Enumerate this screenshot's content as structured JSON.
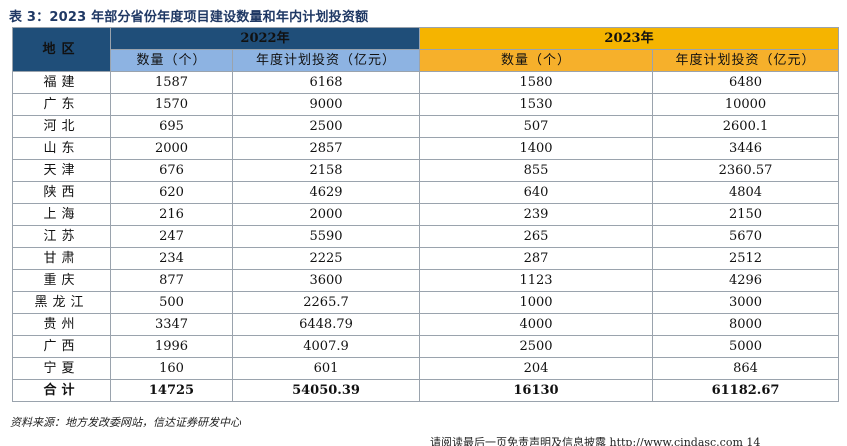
{
  "title": "表 3：2023 年部分省份年度项目建设数量和年内计划投资额",
  "table": {
    "region_header": "地区",
    "year_2022": "2022年",
    "year_2023": "2023年",
    "col_count": "数量（个）",
    "col_invest": "年度计划投资（亿元）",
    "rows": [
      {
        "region": "福建",
        "c22": "1587",
        "i22": "6168",
        "c23": "1580",
        "i23": "6480"
      },
      {
        "region": "广东",
        "c22": "1570",
        "i22": "9000",
        "c23": "1530",
        "i23": "10000"
      },
      {
        "region": "河北",
        "c22": "695",
        "i22": "2500",
        "c23": "507",
        "i23": "2600.1"
      },
      {
        "region": "山东",
        "c22": "2000",
        "i22": "2857",
        "c23": "1400",
        "i23": "3446"
      },
      {
        "region": "天津",
        "c22": "676",
        "i22": "2158",
        "c23": "855",
        "i23": "2360.57"
      },
      {
        "region": "陕西",
        "c22": "620",
        "i22": "4629",
        "c23": "640",
        "i23": "4804"
      },
      {
        "region": "上海",
        "c22": "216",
        "i22": "2000",
        "c23": "239",
        "i23": "2150"
      },
      {
        "region": "江苏",
        "c22": "247",
        "i22": "5590",
        "c23": "265",
        "i23": "5670"
      },
      {
        "region": "甘肃",
        "c22": "234",
        "i22": "2225",
        "c23": "287",
        "i23": "2512"
      },
      {
        "region": "重庆",
        "c22": "877",
        "i22": "3600",
        "c23": "1123",
        "i23": "4296"
      },
      {
        "region": "黑龙江",
        "c22": "500",
        "i22": "2265.7",
        "c23": "1000",
        "i23": "3000"
      },
      {
        "region": "贵州",
        "c22": "3347",
        "i22": "6448.79",
        "c23": "4000",
        "i23": "8000"
      },
      {
        "region": "广西",
        "c22": "1996",
        "i22": "4007.9",
        "c23": "2500",
        "i23": "5000"
      },
      {
        "region": "宁夏",
        "c22": "160",
        "i22": "601",
        "c23": "204",
        "i23": "864"
      }
    ],
    "total": {
      "region": "合计",
      "c22": "14725",
      "i22": "54050.39",
      "c23": "16130",
      "i23": "61182.67"
    }
  },
  "source": "资料来源：地方发改委网站，信达证券研发中心",
  "footer": "请阅读最后一页免责声明及信息披露 http://www.cindasc.com 14"
}
